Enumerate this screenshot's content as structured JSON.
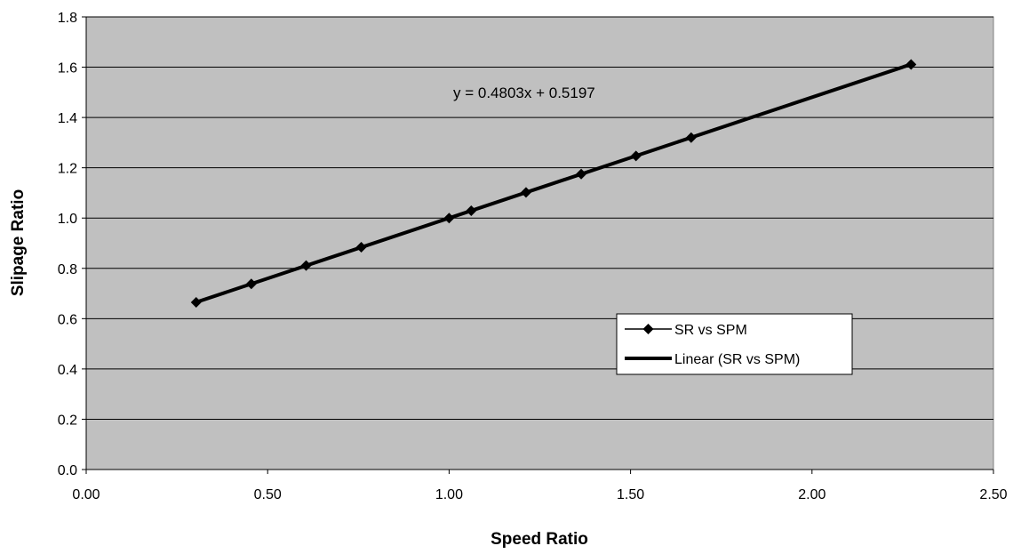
{
  "chart_data": {
    "type": "scatter",
    "xlabel": "Speed Ratio",
    "ylabel": "Slipage Ratio",
    "xlim": [
      0,
      2.5
    ],
    "ylim": [
      0,
      1.8
    ],
    "x_ticks": [
      "0.00",
      "0.50",
      "1.00",
      "1.50",
      "2.00",
      "2.50"
    ],
    "y_ticks": [
      "0.0",
      "0.2",
      "0.4",
      "0.6",
      "0.8",
      "1.0",
      "1.2",
      "1.4",
      "1.6",
      "1.8"
    ],
    "grid": "horizontal",
    "plot_background": "#c0c0c0",
    "series": [
      {
        "name": "SR vs SPM",
        "marker": "diamond",
        "color": "#000000",
        "x": [
          0.303,
          0.455,
          0.606,
          0.758,
          1.0,
          1.061,
          1.212,
          1.364,
          1.515,
          1.667,
          2.273
        ],
        "y": [
          0.665,
          0.738,
          0.811,
          0.884,
          1.0,
          1.029,
          1.102,
          1.175,
          1.247,
          1.32,
          1.611
        ]
      },
      {
        "name": "Linear (SR vs SPM)",
        "type": "trendline",
        "color": "#000000",
        "slope": 0.4803,
        "intercept": 0.5197,
        "x_range": [
          0.303,
          2.273
        ]
      }
    ],
    "annotations": [
      "y = 0.4803x + 0.5197"
    ],
    "legend_position": "lower-right"
  }
}
